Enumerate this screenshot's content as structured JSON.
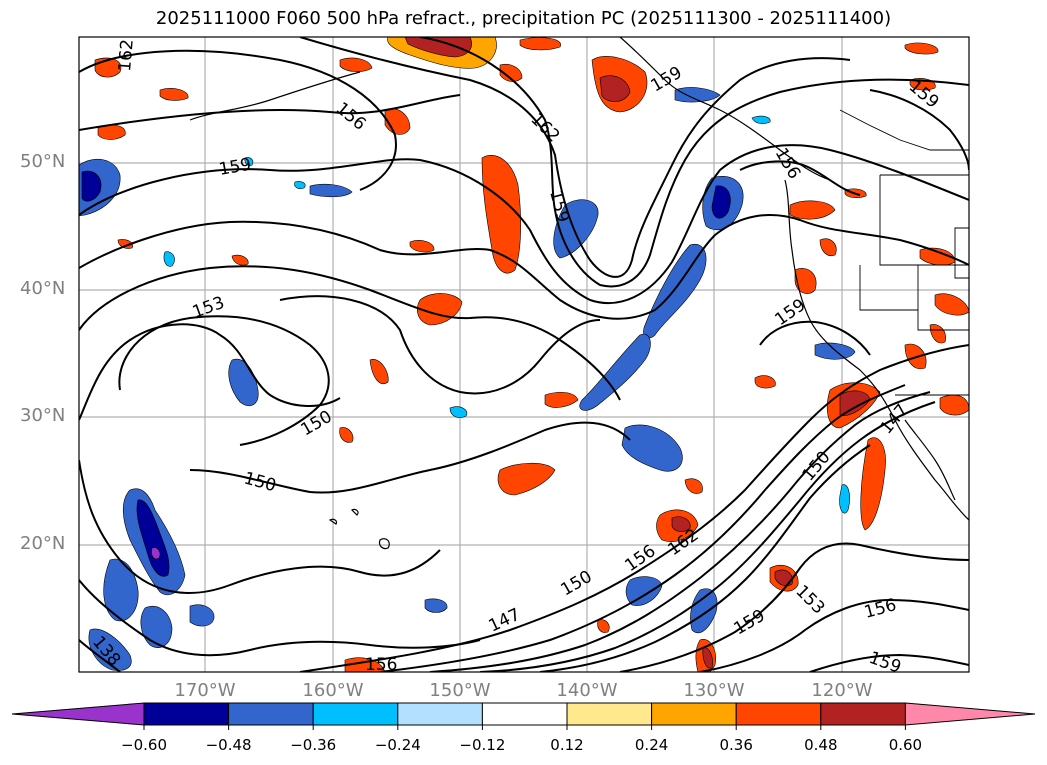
{
  "title": "2025111000 F060 500 hPa refract., precipitation PC (2025111300 - 2025111400)",
  "lat_labels": [
    "50°N",
    "40°N",
    "30°N",
    "20°N"
  ],
  "lon_labels": [
    "170°W",
    "160°W",
    "150°W",
    "140°W",
    "130°W",
    "120°W"
  ],
  "contour_labels": [
    "162",
    "156",
    "159",
    "162",
    "159",
    "159",
    "153",
    "150",
    "150",
    "159",
    "147",
    "150",
    "162",
    "156",
    "150",
    "147",
    "156",
    "153",
    "159",
    "156",
    "159",
    "156",
    "138",
    "159"
  ],
  "colorbar": {
    "ticks": [
      "−0.60",
      "−0.48",
      "−0.36",
      "−0.24",
      "−0.12",
      "0.12",
      "0.24",
      "0.36",
      "0.48",
      "0.60"
    ],
    "colors": [
      "#9933cc",
      "#000099",
      "#3366cc",
      "#00bfff",
      "#b3e0ff",
      "#ffffff",
      "#ffe98c",
      "#ffa500",
      "#ff4500",
      "#b22222",
      "#ff88aa"
    ]
  },
  "colors": {
    "grid": "#b0b0b0",
    "contour": "#000000",
    "coast": "#000000"
  }
}
